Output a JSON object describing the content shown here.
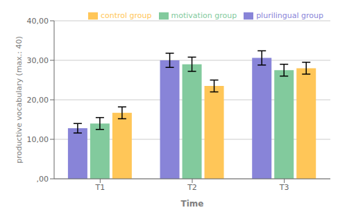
{
  "chart_data": {
    "type": "bar",
    "xlabel": "Time",
    "ylabel": "productive vocabulary (max.: 40)",
    "categories": [
      "T1",
      "T2",
      "T3"
    ],
    "series": [
      {
        "name": "plurilingual group",
        "color": "#8884d8",
        "values": [
          12.8,
          30.0,
          30.6
        ],
        "errors": [
          1.2,
          1.8,
          1.8
        ]
      },
      {
        "name": "motivation group",
        "color": "#82ca9d",
        "values": [
          14.0,
          29.0,
          27.5
        ],
        "errors": [
          1.5,
          1.8,
          1.5
        ]
      },
      {
        "name": "control group",
        "color": "#ffc658",
        "values": [
          16.7,
          23.5,
          28.0
        ],
        "errors": [
          1.5,
          1.5,
          1.5
        ]
      }
    ],
    "ylim": [
      0,
      40
    ],
    "yticks": [
      {
        "value": 0,
        "label": ",00"
      },
      {
        "value": 10,
        "label": "10,00"
      },
      {
        "value": 20,
        "label": "20,00"
      },
      {
        "value": 30,
        "label": "30,00"
      },
      {
        "value": 40,
        "label": "40,00"
      }
    ],
    "grid": true,
    "legend": "upper right"
  }
}
